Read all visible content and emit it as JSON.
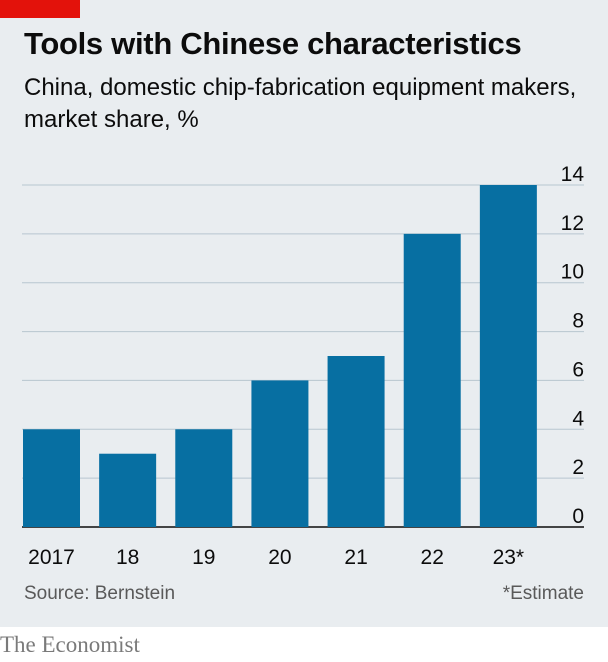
{
  "title": "Tools with Chinese characteristics",
  "subtitle": "China, domestic chip-fabrication equipment makers, market share, %",
  "source": "Source: Bernstein",
  "note": "*Estimate",
  "brand": "The Economist",
  "colors": {
    "bar": "#076fa2",
    "accent": "#e3120b",
    "panel": "#e9edf0",
    "grid": "#b7c6cf"
  },
  "chart_data": {
    "type": "bar",
    "categories": [
      "2017",
      "18",
      "19",
      "20",
      "21",
      "22",
      "23*"
    ],
    "values": [
      4,
      3,
      4,
      6,
      7,
      12,
      14
    ],
    "xlabel": "",
    "ylabel": "",
    "ylim": [
      0,
      14
    ],
    "yticks": [
      0,
      2,
      4,
      6,
      8,
      10,
      12,
      14
    ],
    "grid": true,
    "y_axis_side": "right"
  }
}
